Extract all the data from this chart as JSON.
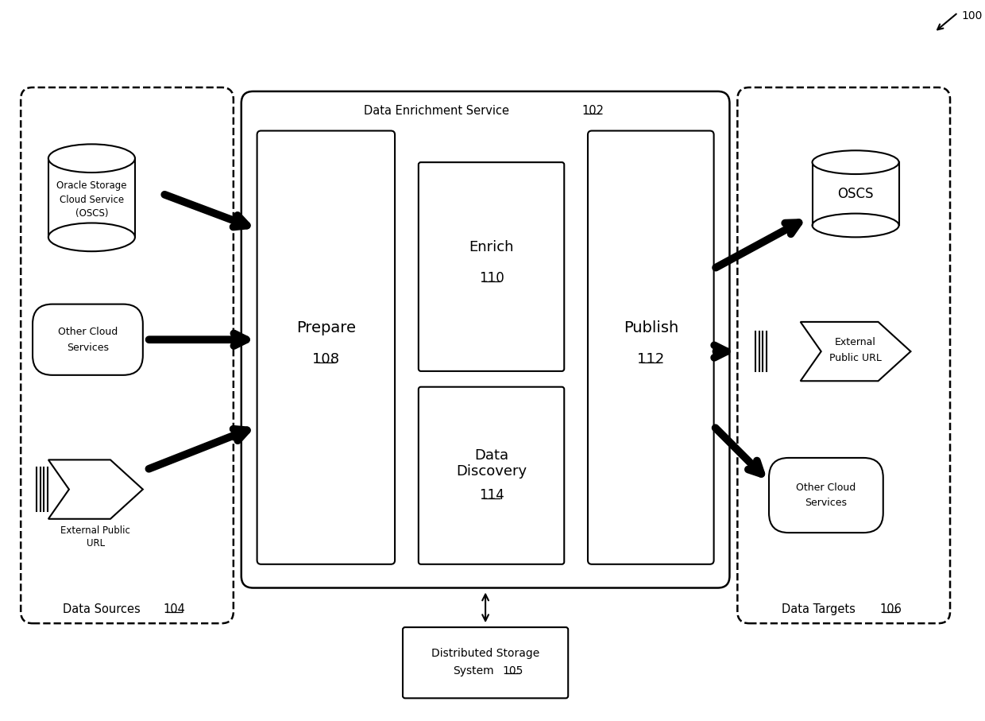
{
  "bg_color": "#ffffff",
  "figure_width": 12.4,
  "figure_height": 9.07,
  "dpi": 100,
  "ref_number": "100",
  "data_sources_label": "Data Sources",
  "data_sources_ref": "104",
  "data_targets_label": "Data Targets",
  "data_targets_ref": "106",
  "des_label": "Data Enrichment Service",
  "des_ref": "102",
  "prepare_label": "Prepare",
  "prepare_ref": "108",
  "enrich_label": "Enrich",
  "enrich_ref": "110",
  "data_discovery_line1": "Data",
  "data_discovery_line2": "Discovery",
  "data_discovery_ref": "114",
  "publish_label": "Publish",
  "publish_ref": "112",
  "dss_line1": "Distributed Storage",
  "dss_line2": "System",
  "dss_ref": "105",
  "oscs_source_line1": "Oracle Storage",
  "oscs_source_line2": "Cloud Service",
  "oscs_source_line3": "(OSCS)",
  "other_cloud_source_line1": "Other Cloud",
  "other_cloud_source_line2": "Services",
  "ext_url_source_line1": "External Public",
  "ext_url_source_line2": "URL",
  "oscs_target_label": "OSCS",
  "ext_url_target_line1": "External",
  "ext_url_target_line2": "Public URL",
  "other_cloud_target_line1": "Other Cloud",
  "other_cloud_target_line2": "Services"
}
